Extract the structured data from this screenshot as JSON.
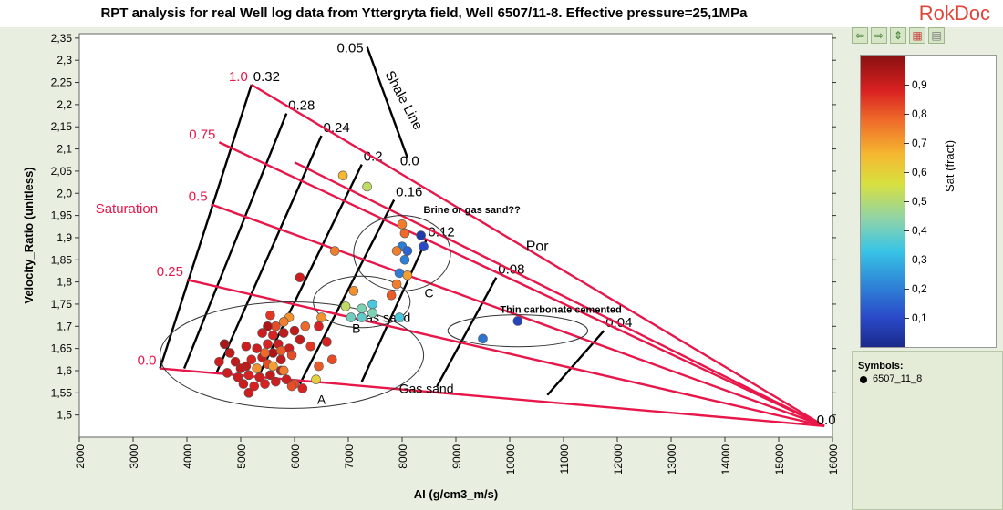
{
  "header": {
    "title": "RPT analysis for real Well log data from Yttergryta field, Well 6507/11-8. Effective pressure=25,1MPa",
    "brand": "RokDoc"
  },
  "toolbar": {
    "icons": [
      "arrow-left-icon",
      "arrow-right-icon",
      "arrow-updown-icon",
      "palette-icon",
      "grid-icon"
    ]
  },
  "colorbar": {
    "title": "Sat  (fract)",
    "ticks": [
      "0,1",
      "0,2",
      "0,3",
      "0,4",
      "0,5",
      "0,6",
      "0,7",
      "0,8",
      "0,9"
    ],
    "range": [
      0.0,
      1.0
    ]
  },
  "legend": {
    "title": "Symbols:",
    "item": "6507_11_8"
  },
  "colors": {
    "rpt_lines": "#e8174a",
    "por_lines": "#000000",
    "sat_label": "#e8174a"
  },
  "chart_data": {
    "type": "scatter",
    "xlabel": "AI  (g/cm3_m/s)",
    "ylabel": "Velocity_Ratio  (unitless)",
    "xlim": [
      2000,
      16000
    ],
    "ylim": [
      1.45,
      2.36
    ],
    "xticks": [
      "2000",
      "3000",
      "4000",
      "5000",
      "6000",
      "7000",
      "8000",
      "9000",
      "10000",
      "11000",
      "12000",
      "13000",
      "14000",
      "15000",
      "16000"
    ],
    "yticks": [
      "1,5",
      "1,55",
      "1,6",
      "1,65",
      "1,7",
      "1,75",
      "1,8",
      "1,85",
      "1,9",
      "1,95",
      "2,0",
      "2,05",
      "2,1",
      "2,15",
      "2,2",
      "2,25",
      "2,3",
      "2,35"
    ],
    "apex": [
      15850,
      1.475
    ],
    "saturation_lines": [
      {
        "label": "1.0",
        "start": [
          5200,
          2.245
        ]
      },
      {
        "label": "0.75",
        "start": [
          4600,
          2.115
        ]
      },
      {
        "label": "0.5",
        "start": [
          4450,
          1.975
        ]
      },
      {
        "label": "0.25",
        "start": [
          4000,
          1.805
        ]
      },
      {
        "label": "0.0",
        "start": [
          3500,
          1.605
        ]
      },
      {
        "label": "",
        "start": [
          6000,
          2.07
        ]
      }
    ],
    "porosity_lines": [
      {
        "label": "0.32",
        "bottom": [
          3500,
          1.605
        ],
        "top": [
          5200,
          2.245
        ]
      },
      {
        "label": "0.28",
        "bottom": [
          3950,
          1.605
        ],
        "top": [
          5850,
          2.18
        ]
      },
      {
        "label": "0.24",
        "bottom": [
          4550,
          1.595
        ],
        "top": [
          6500,
          2.13
        ]
      },
      {
        "label": "0.2",
        "bottom": [
          5300,
          1.58
        ],
        "top": [
          7250,
          2.065
        ]
      },
      {
        "label": "0.16",
        "bottom": [
          6100,
          1.57
        ],
        "top": [
          7850,
          1.985
        ]
      },
      {
        "label": "0.12",
        "bottom": [
          7250,
          1.575
        ],
        "top": [
          8450,
          1.895
        ]
      },
      {
        "label": "0.08",
        "bottom": [
          8650,
          1.565
        ],
        "top": [
          9750,
          1.81
        ]
      },
      {
        "label": "0.04",
        "bottom": [
          10700,
          1.545
        ],
        "top": [
          11750,
          1.69
        ]
      }
    ],
    "shale_line": {
      "label": "Shale Line",
      "start": [
        7350,
        2.33
      ],
      "end": [
        8100,
        2.08
      ],
      "top_label": "0.05",
      "bottom_label": "0.0"
    },
    "por_label": "Por",
    "saturation_label": "Saturation",
    "apex_label": "0.0",
    "annotations": [
      {
        "text": "Gas sand",
        "x": 8450,
        "y": 1.55
      },
      {
        "text": "A",
        "x": 6500,
        "y": 1.525
      },
      {
        "text": "B",
        "x": 7150,
        "y": 1.685
      },
      {
        "text": "Gas sand",
        "x": 7650,
        "y": 1.71
      },
      {
        "text": "C",
        "x": 8500,
        "y": 1.765
      },
      {
        "text": "Brine or gas sand??",
        "x": 9300,
        "y": 1.955
      },
      {
        "text": "Thin carbonate cemented",
        "x": 10950,
        "y": 1.73
      }
    ],
    "ellipses": [
      {
        "cx": 5950,
        "cy": 1.635,
        "rx": 2450,
        "ry": 0.12
      },
      {
        "cx": 7250,
        "cy": 1.755,
        "rx": 900,
        "ry": 0.058
      },
      {
        "cx": 8000,
        "cy": 1.865,
        "rx": 900,
        "ry": 0.085
      },
      {
        "cx": 10150,
        "cy": 1.69,
        "rx": 1300,
        "ry": 0.036
      }
    ],
    "points": [
      {
        "x": 6900,
        "y": 2.04,
        "sat": 0.66
      },
      {
        "x": 7350,
        "y": 2.015,
        "sat": 0.52
      },
      {
        "x": 6750,
        "y": 1.87,
        "sat": 0.75
      },
      {
        "x": 8000,
        "y": 1.93,
        "sat": 0.75
      },
      {
        "x": 8350,
        "y": 1.905,
        "sat": 0.05
      },
      {
        "x": 8400,
        "y": 1.88,
        "sat": 0.1
      },
      {
        "x": 8000,
        "y": 1.88,
        "sat": 0.2
      },
      {
        "x": 8100,
        "y": 1.87,
        "sat": 0.15
      },
      {
        "x": 7900,
        "y": 1.87,
        "sat": 0.75
      },
      {
        "x": 8050,
        "y": 1.85,
        "sat": 0.2
      },
      {
        "x": 7950,
        "y": 1.82,
        "sat": 0.2
      },
      {
        "x": 8050,
        "y": 1.91,
        "sat": 0.78
      },
      {
        "x": 7900,
        "y": 1.795,
        "sat": 0.75
      },
      {
        "x": 8100,
        "y": 1.815,
        "sat": 0.7
      },
      {
        "x": 7800,
        "y": 1.77,
        "sat": 0.8
      },
      {
        "x": 7100,
        "y": 1.78,
        "sat": 0.72
      },
      {
        "x": 7250,
        "y": 1.74,
        "sat": 0.42
      },
      {
        "x": 7450,
        "y": 1.75,
        "sat": 0.35
      },
      {
        "x": 7050,
        "y": 1.72,
        "sat": 0.4
      },
      {
        "x": 7250,
        "y": 1.72,
        "sat": 0.38
      },
      {
        "x": 7450,
        "y": 1.73,
        "sat": 0.42
      },
      {
        "x": 7950,
        "y": 1.72,
        "sat": 0.35
      },
      {
        "x": 6950,
        "y": 1.745,
        "sat": 0.52
      },
      {
        "x": 9500,
        "y": 1.672,
        "sat": 0.18
      },
      {
        "x": 10150,
        "y": 1.712,
        "sat": 0.08
      },
      {
        "x": 6100,
        "y": 1.81,
        "sat": 0.9
      },
      {
        "x": 6500,
        "y": 1.72,
        "sat": 0.72
      },
      {
        "x": 6450,
        "y": 1.7,
        "sat": 0.88
      },
      {
        "x": 6600,
        "y": 1.665,
        "sat": 0.88
      },
      {
        "x": 6700,
        "y": 1.625,
        "sat": 0.82
      },
      {
        "x": 6450,
        "y": 1.61,
        "sat": 0.8
      },
      {
        "x": 6400,
        "y": 1.58,
        "sat": 0.6
      },
      {
        "x": 6300,
        "y": 1.655,
        "sat": 0.85
      },
      {
        "x": 6150,
        "y": 1.56,
        "sat": 0.88
      },
      {
        "x": 6000,
        "y": 1.57,
        "sat": 0.82
      },
      {
        "x": 5900,
        "y": 1.72,
        "sat": 0.72
      },
      {
        "x": 5800,
        "y": 1.71,
        "sat": 0.75
      },
      {
        "x": 5650,
        "y": 1.7,
        "sat": 0.82
      },
      {
        "x": 5500,
        "y": 1.7,
        "sat": 0.95
      },
      {
        "x": 5400,
        "y": 1.685,
        "sat": 0.9
      },
      {
        "x": 5600,
        "y": 1.68,
        "sat": 0.88
      },
      {
        "x": 5800,
        "y": 1.685,
        "sat": 0.92
      },
      {
        "x": 6000,
        "y": 1.69,
        "sat": 0.92
      },
      {
        "x": 5700,
        "y": 1.66,
        "sat": 0.9
      },
      {
        "x": 5500,
        "y": 1.66,
        "sat": 0.88
      },
      {
        "x": 5300,
        "y": 1.65,
        "sat": 0.9
      },
      {
        "x": 5900,
        "y": 1.65,
        "sat": 0.9
      },
      {
        "x": 6100,
        "y": 1.67,
        "sat": 0.92
      },
      {
        "x": 5600,
        "y": 1.64,
        "sat": 0.95
      },
      {
        "x": 5400,
        "y": 1.63,
        "sat": 0.9
      },
      {
        "x": 5200,
        "y": 1.625,
        "sat": 0.88
      },
      {
        "x": 5750,
        "y": 1.625,
        "sat": 0.92
      },
      {
        "x": 5950,
        "y": 1.635,
        "sat": 0.82
      },
      {
        "x": 5500,
        "y": 1.615,
        "sat": 0.82
      },
      {
        "x": 5300,
        "y": 1.605,
        "sat": 0.72
      },
      {
        "x": 5100,
        "y": 1.61,
        "sat": 0.92
      },
      {
        "x": 4900,
        "y": 1.62,
        "sat": 0.92
      },
      {
        "x": 4800,
        "y": 1.64,
        "sat": 0.92
      },
      {
        "x": 4700,
        "y": 1.66,
        "sat": 0.95
      },
      {
        "x": 4600,
        "y": 1.62,
        "sat": 0.9
      },
      {
        "x": 4750,
        "y": 1.595,
        "sat": 0.9
      },
      {
        "x": 4950,
        "y": 1.585,
        "sat": 0.9
      },
      {
        "x": 5150,
        "y": 1.59,
        "sat": 0.88
      },
      {
        "x": 5350,
        "y": 1.585,
        "sat": 0.9
      },
      {
        "x": 5550,
        "y": 1.59,
        "sat": 0.92
      },
      {
        "x": 5750,
        "y": 1.6,
        "sat": 0.92
      },
      {
        "x": 5650,
        "y": 1.575,
        "sat": 0.9
      },
      {
        "x": 5450,
        "y": 1.57,
        "sat": 0.88
      },
      {
        "x": 5250,
        "y": 1.565,
        "sat": 0.88
      },
      {
        "x": 5050,
        "y": 1.57,
        "sat": 0.9
      },
      {
        "x": 5850,
        "y": 1.58,
        "sat": 0.9
      },
      {
        "x": 5950,
        "y": 1.565,
        "sat": 0.82
      },
      {
        "x": 5150,
        "y": 1.55,
        "sat": 0.9
      },
      {
        "x": 5600,
        "y": 1.61,
        "sat": 0.7
      },
      {
        "x": 5800,
        "y": 1.6,
        "sat": 0.75
      },
      {
        "x": 5450,
        "y": 1.64,
        "sat": 0.78
      },
      {
        "x": 5750,
        "y": 1.645,
        "sat": 0.8
      },
      {
        "x": 6200,
        "y": 1.7,
        "sat": 0.78
      },
      {
        "x": 5550,
        "y": 1.725,
        "sat": 0.85
      },
      {
        "x": 5100,
        "y": 1.655,
        "sat": 0.9
      },
      {
        "x": 5000,
        "y": 1.605,
        "sat": 0.92
      }
    ]
  }
}
